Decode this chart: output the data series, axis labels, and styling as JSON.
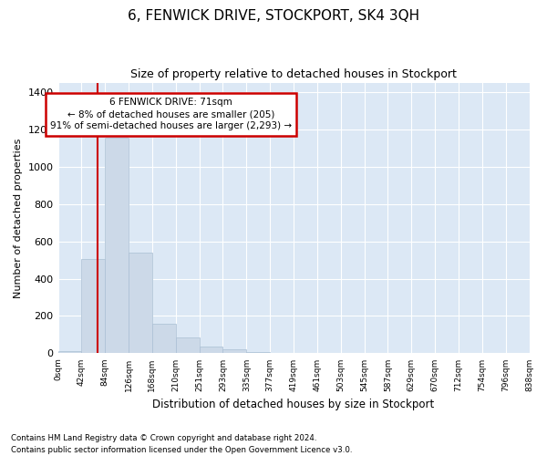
{
  "title": "6, FENWICK DRIVE, STOCKPORT, SK4 3QH",
  "subtitle": "Size of property relative to detached houses in Stockport",
  "xlabel": "Distribution of detached houses by size in Stockport",
  "ylabel": "Number of detached properties",
  "bar_color": "#ccd9e8",
  "bar_edge_color": "#aabfd4",
  "bar_values": [
    10,
    505,
    1155,
    540,
    160,
    85,
    35,
    20,
    5,
    0,
    0,
    0,
    0,
    0,
    0,
    0,
    0,
    0,
    0,
    0
  ],
  "bin_labels": [
    "0sqm",
    "42sqm",
    "84sqm",
    "126sqm",
    "168sqm",
    "210sqm",
    "251sqm",
    "293sqm",
    "335sqm",
    "377sqm",
    "419sqm",
    "461sqm",
    "503sqm",
    "545sqm",
    "587sqm",
    "629sqm",
    "670sqm",
    "712sqm",
    "754sqm",
    "796sqm",
    "838sqm"
  ],
  "ylim": [
    0,
    1450
  ],
  "yticks": [
    0,
    200,
    400,
    600,
    800,
    1000,
    1200,
    1400
  ],
  "property_line_color": "#cc0000",
  "annotation_text": "6 FENWICK DRIVE: 71sqm\n← 8% of detached houses are smaller (205)\n91% of semi-detached houses are larger (2,293) →",
  "annotation_box_color": "#ffffff",
  "annotation_box_edge_color": "#cc0000",
  "plot_bg_color": "#dce8f5",
  "footer_line1": "Contains HM Land Registry data © Crown copyright and database right 2024.",
  "footer_line2": "Contains public sector information licensed under the Open Government Licence v3.0."
}
